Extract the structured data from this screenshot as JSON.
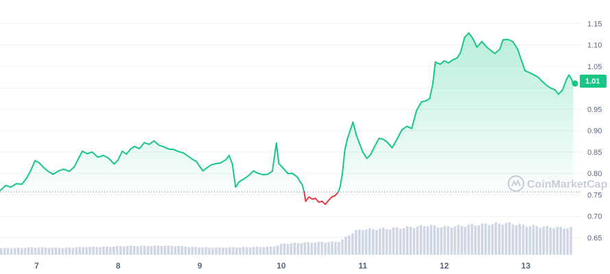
{
  "chart_data": {
    "type": "line",
    "watermark": "CoinMarketCap",
    "current_price_label": "1.01",
    "ylim": [
      0.61,
      1.205
    ],
    "y_ticks": [
      "1.15",
      "1.10",
      "1.05",
      "0.95",
      "0.90",
      "0.85",
      "0.80",
      "0.75",
      "0.70",
      "0.65"
    ],
    "x_ticks": [
      "7",
      "8",
      "9",
      "10",
      "11",
      "12",
      "13"
    ],
    "x_tick_days": [
      7,
      8,
      9,
      10,
      11,
      12,
      13
    ],
    "xlim": [
      6.55,
      13.62
    ],
    "baseline": 0.757,
    "grid": true,
    "legend": "none",
    "colors": {
      "up": "#16c784",
      "down": "#ea3943",
      "volume": "#cfd6e4",
      "grid": "#eff2f5",
      "badge": "#16c784"
    },
    "series": [
      {
        "values": [
          [
            6.55,
            0.76
          ],
          [
            6.62,
            0.772
          ],
          [
            6.68,
            0.768
          ],
          [
            6.75,
            0.776
          ],
          [
            6.82,
            0.775
          ],
          [
            6.88,
            0.79
          ],
          [
            6.93,
            0.808
          ],
          [
            6.98,
            0.83
          ],
          [
            7.03,
            0.825
          ],
          [
            7.08,
            0.815
          ],
          [
            7.14,
            0.805
          ],
          [
            7.2,
            0.798
          ],
          [
            7.27,
            0.806
          ],
          [
            7.33,
            0.81
          ],
          [
            7.4,
            0.805
          ],
          [
            7.46,
            0.815
          ],
          [
            7.5,
            0.83
          ],
          [
            7.56,
            0.852
          ],
          [
            7.62,
            0.846
          ],
          [
            7.68,
            0.85
          ],
          [
            7.75,
            0.838
          ],
          [
            7.82,
            0.842
          ],
          [
            7.88,
            0.836
          ],
          [
            7.95,
            0.822
          ],
          [
            8.0,
            0.832
          ],
          [
            8.05,
            0.852
          ],
          [
            8.1,
            0.845
          ],
          [
            8.15,
            0.857
          ],
          [
            8.2,
            0.863
          ],
          [
            8.26,
            0.858
          ],
          [
            8.32,
            0.872
          ],
          [
            8.38,
            0.868
          ],
          [
            8.44,
            0.876
          ],
          [
            8.5,
            0.866
          ],
          [
            8.56,
            0.862
          ],
          [
            8.62,
            0.857
          ],
          [
            8.68,
            0.856
          ],
          [
            8.74,
            0.851
          ],
          [
            8.8,
            0.848
          ],
          [
            8.86,
            0.84
          ],
          [
            8.92,
            0.832
          ],
          [
            8.96,
            0.828
          ],
          [
            9.0,
            0.816
          ],
          [
            9.04,
            0.806
          ],
          [
            9.08,
            0.812
          ],
          [
            9.14,
            0.82
          ],
          [
            9.2,
            0.823
          ],
          [
            9.26,
            0.825
          ],
          [
            9.32,
            0.832
          ],
          [
            9.36,
            0.842
          ],
          [
            9.4,
            0.822
          ],
          [
            9.44,
            0.768
          ],
          [
            9.48,
            0.78
          ],
          [
            9.54,
            0.787
          ],
          [
            9.6,
            0.795
          ],
          [
            9.66,
            0.806
          ],
          [
            9.72,
            0.8
          ],
          [
            9.78,
            0.797
          ],
          [
            9.83,
            0.798
          ],
          [
            9.89,
            0.805
          ],
          [
            9.94,
            0.871
          ],
          [
            9.97,
            0.823
          ],
          [
            10.02,
            0.813
          ],
          [
            10.08,
            0.8
          ],
          [
            10.14,
            0.8
          ],
          [
            10.2,
            0.791
          ],
          [
            10.23,
            0.781
          ],
          [
            10.26,
            0.773
          ],
          [
            10.28,
            0.757
          ],
          [
            10.3,
            0.735
          ],
          [
            10.34,
            0.745
          ],
          [
            10.38,
            0.74
          ],
          [
            10.42,
            0.742
          ],
          [
            10.46,
            0.733
          ],
          [
            10.5,
            0.735
          ],
          [
            10.54,
            0.728
          ],
          [
            10.58,
            0.737
          ],
          [
            10.62,
            0.745
          ],
          [
            10.66,
            0.748
          ],
          [
            10.7,
            0.757
          ],
          [
            10.72,
            0.767
          ],
          [
            10.75,
            0.8
          ],
          [
            10.78,
            0.855
          ],
          [
            10.81,
            0.88
          ],
          [
            10.85,
            0.903
          ],
          [
            10.88,
            0.92
          ],
          [
            10.92,
            0.89
          ],
          [
            10.96,
            0.87
          ],
          [
            11.0,
            0.85
          ],
          [
            11.05,
            0.835
          ],
          [
            11.1,
            0.845
          ],
          [
            11.15,
            0.865
          ],
          [
            11.2,
            0.882
          ],
          [
            11.25,
            0.88
          ],
          [
            11.3,
            0.873
          ],
          [
            11.36,
            0.86
          ],
          [
            11.42,
            0.88
          ],
          [
            11.48,
            0.902
          ],
          [
            11.54,
            0.91
          ],
          [
            11.6,
            0.905
          ],
          [
            11.66,
            0.947
          ],
          [
            11.72,
            0.967
          ],
          [
            11.78,
            0.97
          ],
          [
            11.82,
            0.975
          ],
          [
            11.86,
            1.01
          ],
          [
            11.89,
            1.06
          ],
          [
            11.95,
            1.055
          ],
          [
            12.0,
            1.063
          ],
          [
            12.05,
            1.058
          ],
          [
            12.1,
            1.065
          ],
          [
            12.16,
            1.07
          ],
          [
            12.2,
            1.083
          ],
          [
            12.25,
            1.118
          ],
          [
            12.3,
            1.128
          ],
          [
            12.35,
            1.115
          ],
          [
            12.4,
            1.095
          ],
          [
            12.46,
            1.108
          ],
          [
            12.52,
            1.095
          ],
          [
            12.58,
            1.086
          ],
          [
            12.62,
            1.08
          ],
          [
            12.68,
            1.09
          ],
          [
            12.72,
            1.112
          ],
          [
            12.78,
            1.113
          ],
          [
            12.84,
            1.108
          ],
          [
            12.9,
            1.09
          ],
          [
            12.95,
            1.062
          ],
          [
            12.99,
            1.04
          ],
          [
            13.05,
            1.035
          ],
          [
            13.1,
            1.03
          ],
          [
            13.15,
            1.025
          ],
          [
            13.2,
            1.015
          ],
          [
            13.26,
            1.005
          ],
          [
            13.3,
            1.0
          ],
          [
            13.36,
            0.995
          ],
          [
            13.4,
            0.985
          ],
          [
            13.45,
            0.995
          ],
          [
            13.5,
            1.02
          ],
          [
            13.53,
            1.03
          ],
          [
            13.56,
            1.02
          ],
          [
            13.58,
            1.01
          ]
        ]
      }
    ],
    "volume": {
      "values": [
        [
          6.55,
          0.2
        ],
        [
          6.7,
          0.21
        ],
        [
          6.9,
          0.22
        ],
        [
          7.1,
          0.22
        ],
        [
          7.3,
          0.21
        ],
        [
          7.5,
          0.23
        ],
        [
          7.7,
          0.24
        ],
        [
          7.9,
          0.25
        ],
        [
          8.1,
          0.27
        ],
        [
          8.3,
          0.27
        ],
        [
          8.5,
          0.28
        ],
        [
          8.7,
          0.27
        ],
        [
          8.9,
          0.24
        ],
        [
          9.1,
          0.22
        ],
        [
          9.3,
          0.22
        ],
        [
          9.5,
          0.23
        ],
        [
          9.7,
          0.24
        ],
        [
          9.9,
          0.25
        ],
        [
          10.0,
          0.34
        ],
        [
          10.2,
          0.36
        ],
        [
          10.4,
          0.38
        ],
        [
          10.6,
          0.39
        ],
        [
          10.7,
          0.4
        ],
        [
          10.8,
          0.58
        ],
        [
          10.9,
          0.73
        ],
        [
          11.0,
          0.78
        ],
        [
          11.2,
          0.79
        ],
        [
          11.4,
          0.81
        ],
        [
          11.6,
          0.85
        ],
        [
          11.7,
          0.87
        ],
        [
          11.8,
          0.9
        ],
        [
          11.9,
          0.85
        ],
        [
          12.0,
          0.85
        ],
        [
          12.2,
          0.88
        ],
        [
          12.4,
          0.92
        ],
        [
          12.6,
          0.95
        ],
        [
          12.7,
          0.96
        ],
        [
          12.8,
          0.95
        ],
        [
          12.95,
          0.9
        ],
        [
          13.1,
          0.87
        ],
        [
          13.3,
          0.84
        ],
        [
          13.5,
          0.82
        ],
        [
          13.58,
          0.81
        ]
      ]
    }
  }
}
